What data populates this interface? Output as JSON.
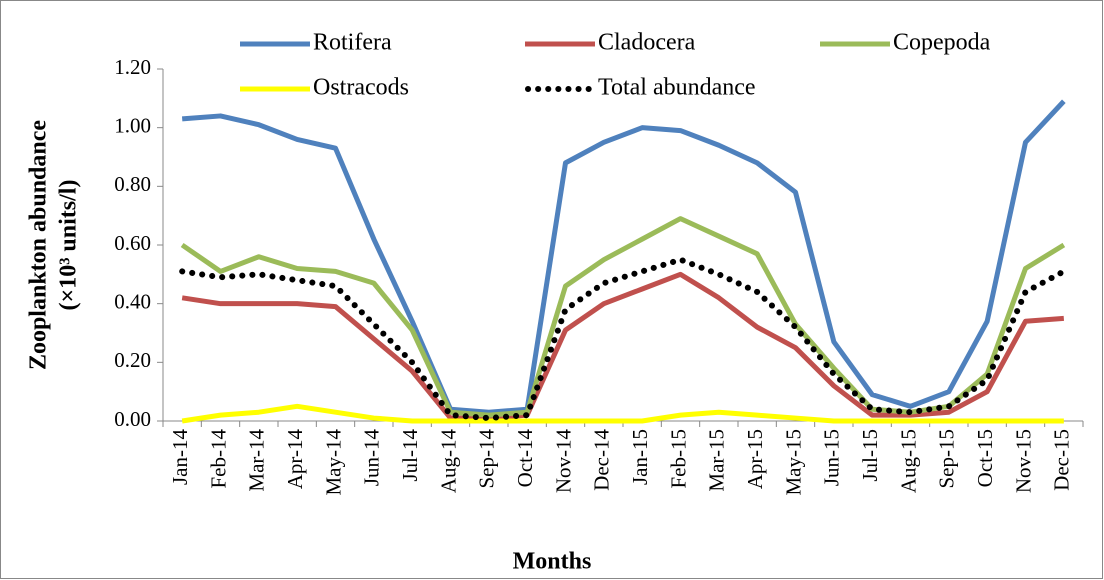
{
  "chart_data": {
    "type": "line",
    "ylabel": [
      "Zooplankton abundance",
      "(×10³ units/l)"
    ],
    "xlabel": "Months",
    "categories": [
      "Jan-14",
      "Feb-14",
      "Mar-14",
      "Apr-14",
      "May-14",
      "Jun-14",
      "Jul-14",
      "Aug-14",
      "Sep-14",
      "Oct-14",
      "Nov-14",
      "Dec-14",
      "Jan-15",
      "Feb-15",
      "Mar-15",
      "Apr-15",
      "May-15",
      "Jun-15",
      "Jul-15",
      "Aug-15",
      "Sep-15",
      "Oct-15",
      "Nov-15",
      "Dec-15"
    ],
    "series": [
      {
        "name": "Rotifera",
        "color": "#4f81bd",
        "values": [
          1.03,
          1.04,
          1.01,
          0.96,
          0.93,
          0.62,
          0.34,
          0.04,
          0.03,
          0.04,
          0.88,
          0.95,
          1.0,
          0.99,
          0.94,
          0.88,
          0.78,
          0.27,
          0.09,
          0.05,
          0.1,
          0.34,
          0.95,
          1.09
        ]
      },
      {
        "name": "Cladocera",
        "color": "#c0504d",
        "values": [
          0.42,
          0.4,
          0.4,
          0.4,
          0.39,
          0.28,
          0.17,
          0.01,
          0.01,
          0.02,
          0.31,
          0.4,
          0.45,
          0.5,
          0.42,
          0.32,
          0.25,
          0.12,
          0.02,
          0.02,
          0.03,
          0.1,
          0.34,
          0.35
        ]
      },
      {
        "name": "Copepoda",
        "color": "#9bbb59",
        "values": [
          0.6,
          0.51,
          0.56,
          0.52,
          0.51,
          0.47,
          0.31,
          0.03,
          0.02,
          0.03,
          0.46,
          0.55,
          0.62,
          0.69,
          0.63,
          0.57,
          0.33,
          0.18,
          0.04,
          0.03,
          0.05,
          0.16,
          0.52,
          0.6
        ]
      },
      {
        "name": "Ostracods",
        "color": "#ffff00",
        "values": [
          0.0,
          0.02,
          0.03,
          0.05,
          0.03,
          0.01,
          0.0,
          0.0,
          0.0,
          0.0,
          0.0,
          0.0,
          0.0,
          0.02,
          0.03,
          0.02,
          0.01,
          0.0,
          0.0,
          0.0,
          0.0,
          0.0,
          0.0,
          0.0
        ]
      },
      {
        "name": "Total abundance",
        "color": "#000000",
        "style": "dotted",
        "values": [
          0.51,
          0.49,
          0.5,
          0.48,
          0.46,
          0.33,
          0.2,
          0.02,
          0.01,
          0.02,
          0.38,
          0.47,
          0.51,
          0.55,
          0.5,
          0.44,
          0.32,
          0.16,
          0.04,
          0.03,
          0.05,
          0.14,
          0.44,
          0.51
        ]
      }
    ],
    "ylim": [
      0,
      1.2
    ],
    "yticks": [
      {
        "value": 0,
        "label": "0.00"
      },
      {
        "value": 0.2,
        "label": "0.20"
      },
      {
        "value": 0.4,
        "label": "0.40"
      },
      {
        "value": 0.6,
        "label": "0.60"
      },
      {
        "value": 0.8,
        "label": "0.80"
      },
      {
        "value": 1,
        "label": "1.00"
      },
      {
        "value": 1.2,
        "label": "1.20"
      }
    ],
    "grid": false,
    "legend": "top"
  }
}
